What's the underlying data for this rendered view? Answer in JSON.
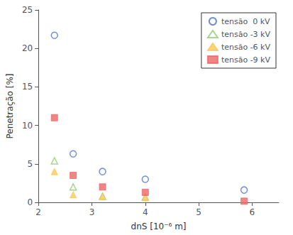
{
  "chart_data": {
    "type": "scatter",
    "xlabel": "dnS [10⁻⁶ m]",
    "ylabel": "Penetração [%]",
    "series": [
      {
        "name": "tensão  0 kV",
        "marker": "circle-open",
        "x": [
          2.3,
          2.65,
          3.2,
          4.0,
          5.85
        ],
        "values": [
          21.7,
          6.3,
          4.0,
          3.0,
          1.6
        ]
      },
      {
        "name": "tensão -3 kV",
        "marker": "triangle-open",
        "x": [
          2.3,
          2.65,
          3.2,
          4.0
        ],
        "values": [
          5.4,
          2.0,
          0.8,
          0.7
        ]
      },
      {
        "name": "tensão -6 kV",
        "marker": "triangle",
        "x": [
          2.3,
          2.65,
          3.2,
          4.0
        ],
        "values": [
          4.0,
          1.0,
          0.75,
          0.6
        ]
      },
      {
        "name": "tensão -9 kV",
        "marker": "square",
        "x": [
          2.3,
          2.65,
          3.2,
          4.0,
          5.85
        ],
        "values": [
          11.0,
          3.5,
          2.0,
          1.3,
          0.15
        ]
      }
    ],
    "xlim": [
      2.0,
      6.5
    ],
    "ylim": [
      0,
      25
    ],
    "xticks": [
      2,
      3,
      4,
      5,
      6
    ],
    "yticks": [
      0,
      5,
      10,
      15,
      20,
      25
    ],
    "grid": false,
    "legend": "upper right"
  }
}
